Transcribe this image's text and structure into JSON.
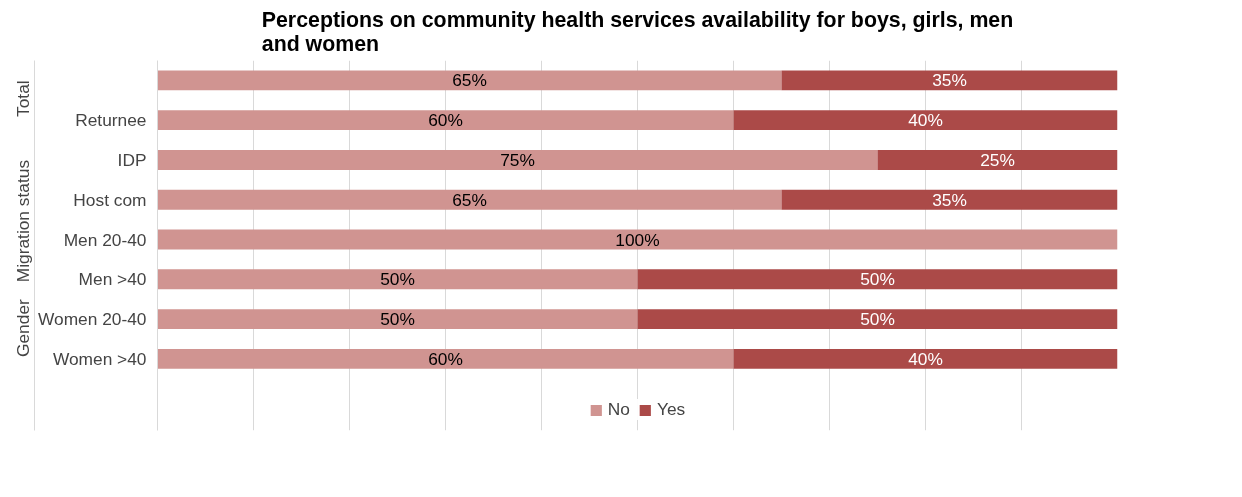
{
  "chart_data": {
    "type": "bar",
    "orientation": "horizontal",
    "stacked": true,
    "title": "Perceptions on community health services availability for boys, girls, men and women",
    "categories": [
      null,
      "Returnee",
      "IDP",
      "Host com",
      "Men 20-40",
      "Men >40",
      "Women 20-40",
      "Women >40"
    ],
    "annotations": [
      "Total",
      "Migration status",
      "Gender"
    ],
    "series": [
      {
        "name": "No",
        "color": "#d09491",
        "values": [
          65,
          60,
          75,
          65,
          100,
          50,
          50,
          60
        ],
        "value_labels": [
          "65%",
          "60%",
          "75%",
          "65%",
          "100%",
          "50%",
          "50%",
          "60%"
        ]
      },
      {
        "name": "Yes",
        "color": "#ab4a48",
        "values": [
          35,
          40,
          25,
          35,
          0,
          50,
          50,
          40
        ],
        "value_labels": [
          "35%",
          "40%",
          "25%",
          "35%",
          null,
          "50%",
          "50%",
          "40%"
        ]
      }
    ],
    "xlim": [
      0,
      100
    ],
    "xticks": [
      {
        "value": 0,
        "label": null
      },
      {
        "value": 10,
        "label": null
      },
      {
        "value": 20,
        "label": null
      },
      {
        "value": 30,
        "label": null
      },
      {
        "value": 40,
        "label": null
      },
      {
        "value": 50,
        "label": null
      },
      {
        "value": 60,
        "label": null
      },
      {
        "value": 70,
        "label": null
      },
      {
        "value": 80,
        "label": null
      },
      {
        "value": 90,
        "label": null
      }
    ],
    "tick_labels": "y",
    "grid": "x",
    "legend": "bottom"
  }
}
